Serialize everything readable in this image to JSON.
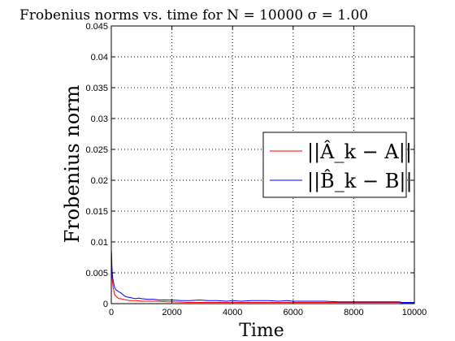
{
  "chart_data": {
    "type": "line",
    "title": "Frobenius norms vs. time for N = 10000 σ = 1.00",
    "xlabel": "Time",
    "ylabel": "Frobenius norm",
    "xlim": [
      0,
      10000
    ],
    "ylim": [
      0,
      0.045
    ],
    "grid": true,
    "grid_style": "dotted",
    "legend_position": "right",
    "x_ticks": [
      "0",
      "2000",
      "4000",
      "6000",
      "8000",
      "10000"
    ],
    "y_ticks": [
      "0",
      "0.005",
      "0.01",
      "0.015",
      "0.02",
      "0.025",
      "0.03",
      "0.035",
      "0.04",
      "0.045"
    ],
    "series": [
      {
        "name": "||Â_k − A||",
        "color": "#ff0000",
        "x": [
          0,
          10,
          25,
          40,
          60,
          80,
          100,
          130,
          160,
          200,
          250,
          300,
          400,
          500,
          600,
          800,
          1000,
          1200,
          1500,
          1800,
          2000,
          2500,
          3000,
          3500,
          4000,
          5000,
          6000,
          7000,
          8000,
          9000,
          9500,
          9600,
          10000
        ],
        "y": [
          0.0065,
          0.0052,
          0.0045,
          0.0035,
          0.0026,
          0.0022,
          0.0016,
          0.0013,
          0.0012,
          0.001,
          0.0008,
          0.0008,
          0.0007,
          0.0006,
          0.0005,
          0.0005,
          0.0004,
          0.0004,
          0.0004,
          0.0003,
          0.0003,
          0.0002,
          0.0002,
          0.0002,
          0.0002,
          0.0002,
          0.0002,
          0.0002,
          0.0002,
          0.0002,
          0.0002,
          0.0001,
          0.0001
        ]
      },
      {
        "name": "||B̂_k − B||",
        "color": "#0000ff",
        "x": [
          0,
          10,
          20,
          35,
          50,
          70,
          90,
          110,
          130,
          160,
          200,
          250,
          300,
          350,
          400,
          450,
          500,
          600,
          700,
          800,
          900,
          1000,
          1200,
          1400,
          1600,
          1800,
          2000,
          2300,
          2600,
          2900,
          3200,
          3500,
          3800,
          4000,
          4300,
          4600,
          4900,
          5200,
          5500,
          5800,
          6000,
          6500,
          7000,
          7500,
          8000,
          8500,
          9000,
          9500,
          9600,
          10000
        ],
        "y": [
          0.0088,
          0.008,
          0.006,
          0.0048,
          0.004,
          0.0036,
          0.003,
          0.0026,
          0.0024,
          0.0022,
          0.0021,
          0.0019,
          0.0018,
          0.0016,
          0.0014,
          0.0012,
          0.0011,
          0.001,
          0.0009,
          0.0008,
          0.0009,
          0.0008,
          0.0007,
          0.0007,
          0.0006,
          0.0006,
          0.0006,
          0.0005,
          0.0005,
          0.0006,
          0.0005,
          0.0005,
          0.0004,
          0.0005,
          0.0004,
          0.0005,
          0.0005,
          0.0005,
          0.0004,
          0.0005,
          0.0004,
          0.0004,
          0.0004,
          0.0003,
          0.0003,
          0.0003,
          0.0003,
          0.0003,
          0.0002,
          0.0002
        ]
      }
    ]
  }
}
